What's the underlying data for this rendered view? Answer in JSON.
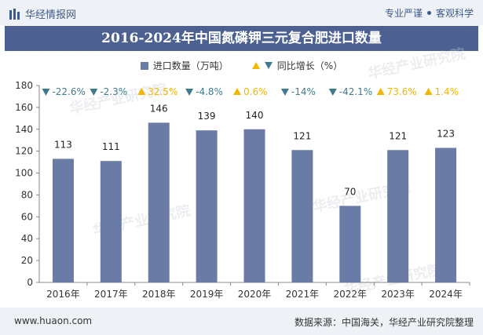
{
  "header": {
    "brand": "华经情报网",
    "tag1": "专业严谨",
    "tag2": "客观科学"
  },
  "title": "2016-2024年中国氮磷钾三元复合肥进口数量",
  "legend": {
    "bar_label": "进口数量（万吨）",
    "growth_label": "同比增长（%）"
  },
  "watermark": "华经产业研究院",
  "footer": {
    "site": "www.huaon.com",
    "source": "数据来源：中国海关，华经产业研究院整理"
  },
  "colors": {
    "bar": "#6a7ca6",
    "up": "#f2b600",
    "down": "#3f7b8f"
  },
  "chart_data": {
    "type": "bar",
    "categories": [
      "2016年",
      "2017年",
      "2018年",
      "2019年",
      "2020年",
      "2021年",
      "2022年",
      "2023年",
      "2024年"
    ],
    "series": [
      {
        "name": "进口数量（万吨）",
        "values": [
          113,
          111,
          146,
          139,
          140,
          121,
          70,
          121,
          123
        ]
      }
    ],
    "growth": [
      "-22.6%",
      "-2.3%",
      "32.5%",
      "-4.8%",
      "0.6%",
      "-14%",
      "-42.1%",
      "73.6%",
      "1.4%"
    ],
    "growth_direction": [
      "down",
      "down",
      "up",
      "down",
      "up",
      "down",
      "down",
      "up",
      "up"
    ],
    "ylim": [
      0,
      180
    ],
    "yticks": [
      0,
      20,
      40,
      60,
      80,
      100,
      120,
      140,
      160,
      180
    ],
    "grid": false,
    "legend_position": "top"
  }
}
